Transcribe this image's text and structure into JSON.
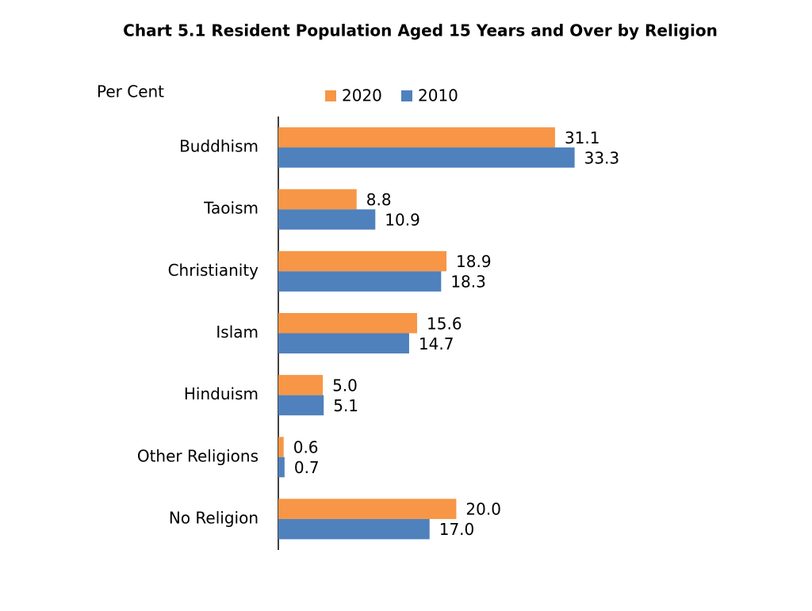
{
  "chart_data": {
    "type": "bar",
    "orientation": "horizontal",
    "title": "Chart 5.1  Resident Population Aged 15 Years and Over by Religion",
    "y_label": "Per Cent",
    "categories": [
      "Buddhism",
      "Taoism",
      "Christianity",
      "Islam",
      "Hinduism",
      "Other Religions",
      "No Religion"
    ],
    "series": [
      {
        "name": "2020",
        "color": "#F79646",
        "values": [
          31.1,
          8.8,
          18.9,
          15.6,
          5.0,
          0.6,
          20.0
        ],
        "value_labels": [
          "31.1",
          "8.8",
          "18.9",
          "15.6",
          "5.0",
          "0.6",
          "20.0"
        ]
      },
      {
        "name": "2010",
        "color": "#4F81BD",
        "values": [
          33.3,
          10.9,
          18.3,
          14.7,
          5.1,
          0.7,
          17.0
        ],
        "value_labels": [
          "33.3",
          "10.9",
          "18.3",
          "14.7",
          "5.1",
          "0.7",
          "17.0"
        ]
      }
    ],
    "legend": "top"
  }
}
